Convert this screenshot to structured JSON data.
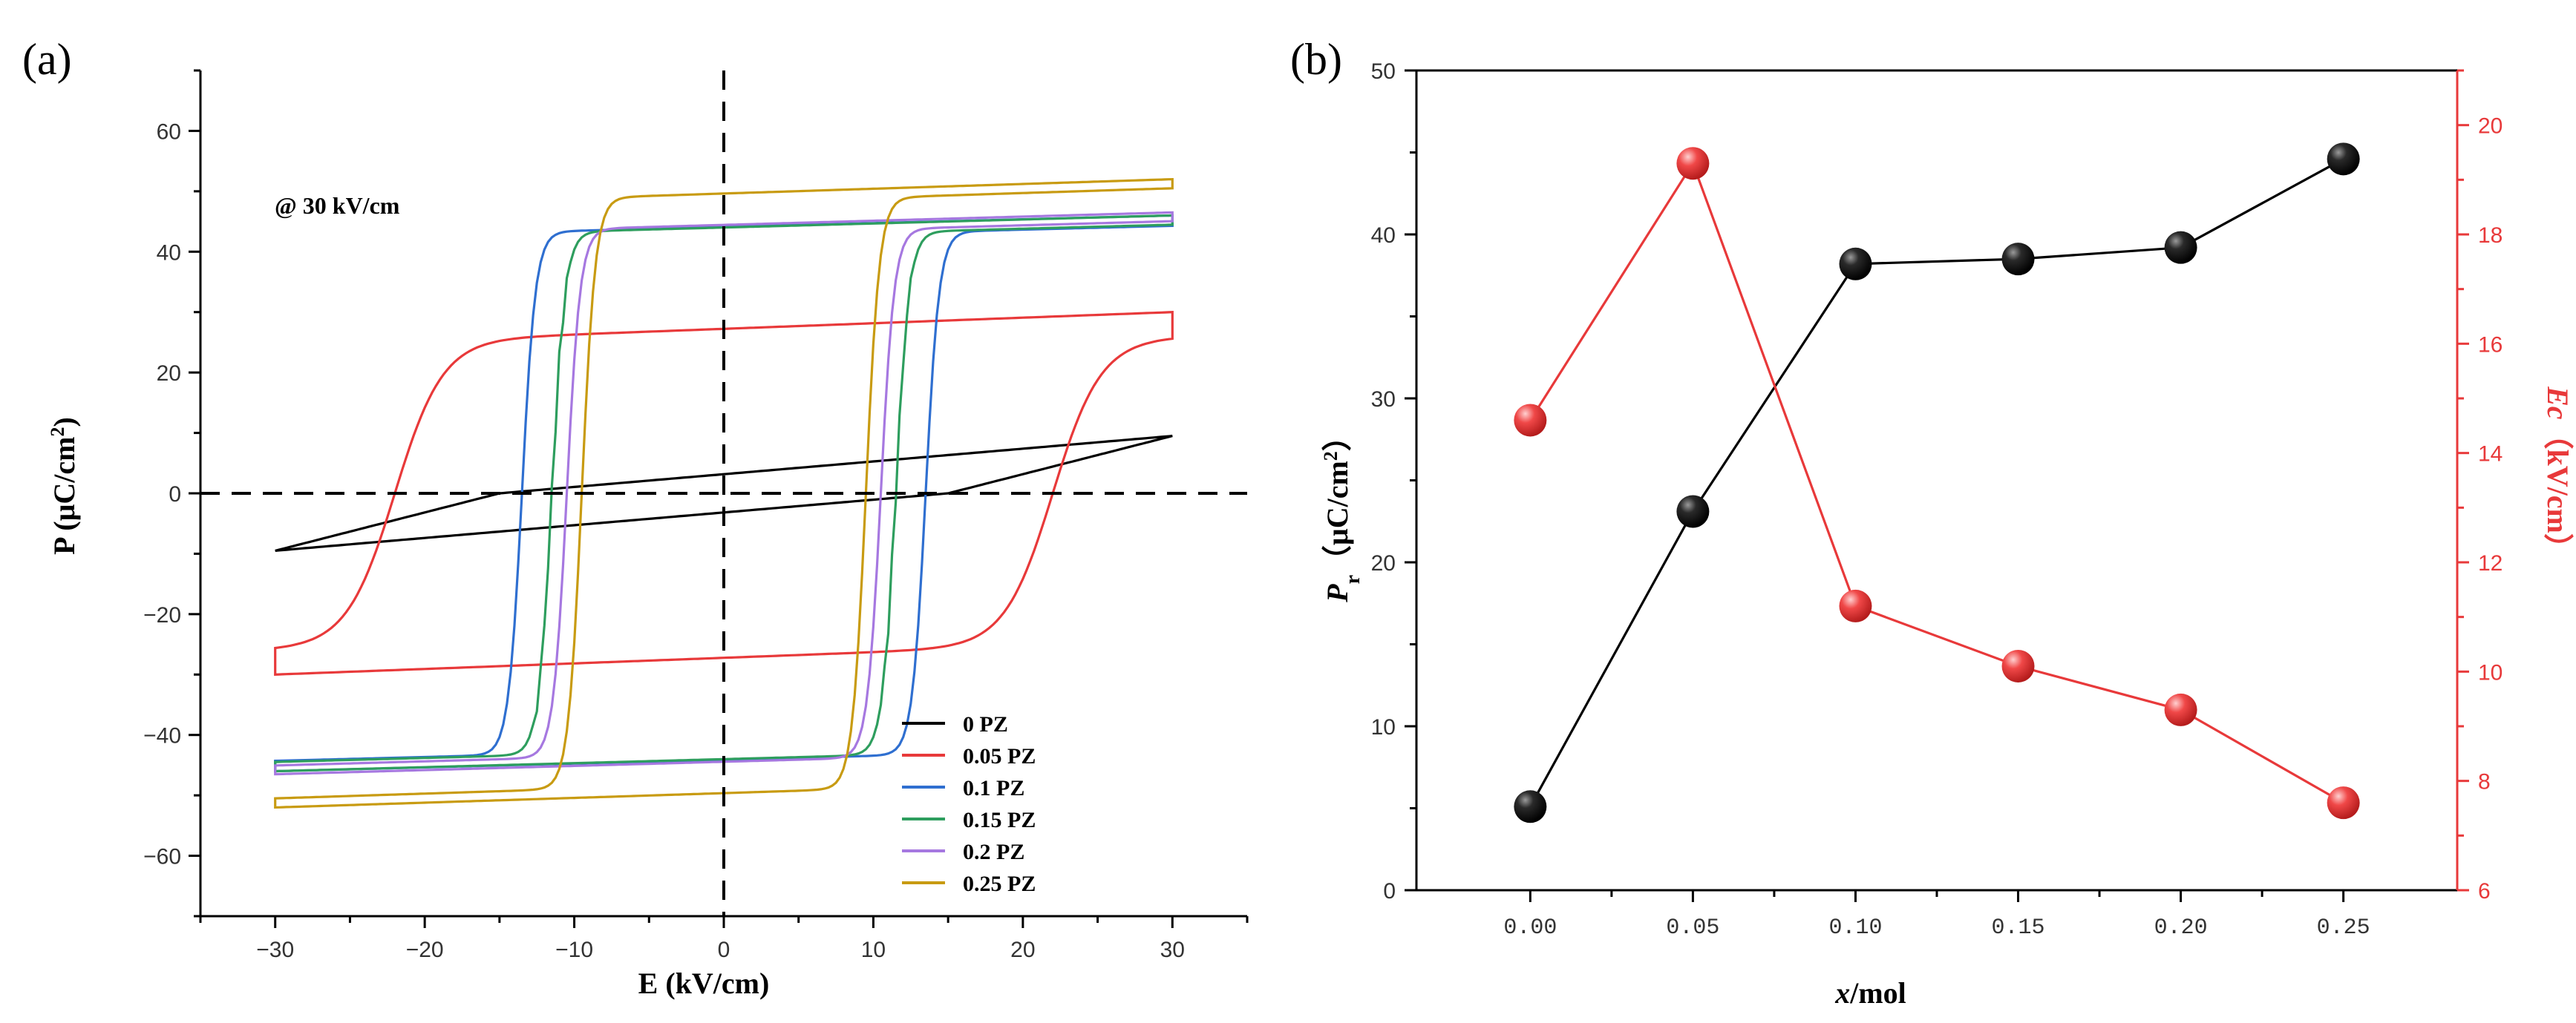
{
  "chart_data": [
    {
      "type": "line",
      "panel_label": "(a)",
      "xlabel": "E (kV/cm)",
      "ylabel": "P (μC/cm²)",
      "ylabel_parts": {
        "prefix": "P (μC/cm",
        "sup": "2",
        "suffix": ")"
      },
      "xlim": [
        -35,
        35
      ],
      "ylim": [
        -70,
        70
      ],
      "xticks": [
        -30,
        -20,
        -10,
        0,
        10,
        20,
        30
      ],
      "yticks": [
        -60,
        -40,
        -20,
        0,
        20,
        40,
        60
      ],
      "xtick_labels": [
        "−30",
        "−20",
        "−10",
        "0",
        "10",
        "20",
        "30"
      ],
      "ytick_labels": [
        "−60",
        "−40",
        "−20",
        "0",
        "20",
        "40",
        "60"
      ],
      "annotation": "@ 30 kV/cm",
      "legend_position": "bottom-right",
      "series": [
        {
          "name": "0 PZ",
          "color": "#000000",
          "Pmax": 9.5,
          "Pr": 5,
          "Ec": 15,
          "shape": "linear"
        },
        {
          "name": "0.05 PZ",
          "color": "#e8393a",
          "Pmax": 30,
          "Pr": 23,
          "Ec": 22,
          "shape": "round"
        },
        {
          "name": "0.1 PZ",
          "color": "#2f6fd0",
          "Pmax": 46,
          "Pr": 38,
          "Ec": 13.5,
          "shape": "square"
        },
        {
          "name": "0.15 PZ",
          "color": "#2e9e5e",
          "Pmax": 46,
          "Pr": 40,
          "Ec": 11.5,
          "shape": "square"
        },
        {
          "name": "0.2 PZ",
          "color": "#a678e0",
          "Pmax": 46.5,
          "Pr": 41,
          "Ec": 10.5,
          "shape": "square"
        },
        {
          "name": "0.25 PZ",
          "color": "#c89b12",
          "Pmax": 52,
          "Pr": 46,
          "Ec": 9.5,
          "shape": "square"
        }
      ]
    },
    {
      "type": "line",
      "panel_label": "(b)",
      "xlabel": "x/mol",
      "xlabel_parts": {
        "italic": "x",
        "rest": "/mol"
      },
      "categories": [
        "0.00",
        "0.05",
        "0.10",
        "0.15",
        "0.20",
        "0.25"
      ],
      "x": [
        0.0,
        0.05,
        0.1,
        0.15,
        0.2,
        0.25
      ],
      "xlim": [
        -0.035,
        0.285
      ],
      "ylabel_left": "Pr（μC/cm²）",
      "ylabel_left_parts": {
        "italic": "P",
        "sub": "r",
        "mid": "（μC/cm",
        "sup": "2",
        "end": "）"
      },
      "ylabel_right": "Ec（kV/cm）",
      "ylabel_right_parts": {
        "italic": "Ec",
        "rest": "（kV/cm）"
      },
      "ylim_left": [
        0,
        50
      ],
      "yticks_left": [
        0,
        10,
        20,
        30,
        40,
        50
      ],
      "ylim_right": [
        6,
        21
      ],
      "yticks_right": [
        6,
        8,
        10,
        12,
        14,
        16,
        18,
        20
      ],
      "series": [
        {
          "name": "Pr",
          "axis": "left",
          "color": "#000000",
          "values": [
            5.1,
            23.1,
            38.2,
            38.5,
            39.2,
            44.6
          ]
        },
        {
          "name": "Ec",
          "axis": "right",
          "color": "#e8393a",
          "values": [
            14.6,
            19.3,
            11.2,
            10.1,
            9.3,
            7.6
          ]
        }
      ]
    }
  ]
}
